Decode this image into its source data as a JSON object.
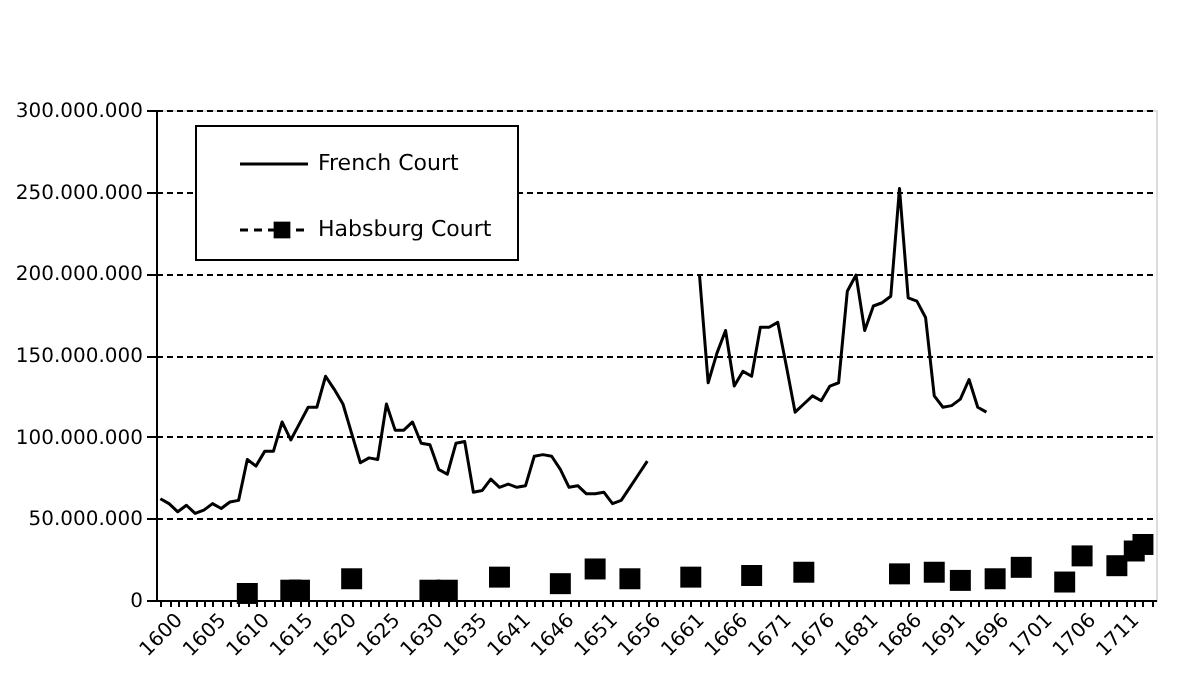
{
  "chart_data": {
    "type": "line",
    "categories": [
      "1600",
      null,
      null,
      null,
      null,
      "1605",
      null,
      null,
      null,
      null,
      "1610",
      null,
      null,
      null,
      null,
      "1615",
      null,
      null,
      null,
      null,
      "1620",
      null,
      null,
      null,
      null,
      "1625",
      null,
      null,
      null,
      null,
      "1630",
      null,
      null,
      null,
      null,
      "1635",
      null,
      null,
      null,
      null,
      "1641",
      null,
      null,
      null,
      null,
      "1646",
      null,
      null,
      null,
      null,
      "1651",
      null,
      null,
      null,
      null,
      "1656",
      null,
      null,
      null,
      null,
      "1661",
      null,
      null,
      null,
      null,
      "1666",
      null,
      null,
      null,
      null,
      "1671",
      null,
      null,
      null,
      null,
      "1676",
      null,
      null,
      null,
      null,
      "1681",
      null,
      null,
      null,
      null,
      "1686",
      null,
      null,
      null,
      null,
      "1691",
      null,
      null,
      null,
      null,
      "1696",
      null,
      null,
      null,
      null,
      "1701",
      null,
      null,
      null,
      null,
      "1706",
      null,
      null,
      null,
      null,
      "1711",
      null,
      null,
      null,
      null
    ],
    "series": [
      {
        "name": "French Court",
        "color": "#000000",
        "line_style": "solid",
        "marker": "none",
        "values": [
          62000000,
          59000000,
          54000000,
          58000000,
          53000000,
          55000000,
          59000000,
          56000000,
          60000000,
          61000000,
          86000000,
          82000000,
          91000000,
          91000000,
          109000000,
          98000000,
          108000000,
          118000000,
          118000000,
          137000000,
          129000000,
          120000000,
          102000000,
          84000000,
          87000000,
          86000000,
          120000000,
          104000000,
          104000000,
          109000000,
          96000000,
          95000000,
          80000000,
          77000000,
          96000000,
          97000000,
          66000000,
          67000000,
          74000000,
          69000000,
          71000000,
          69000000,
          70000000,
          88000000,
          89000000,
          88000000,
          80000000,
          69000000,
          70000000,
          65000000,
          65000000,
          66000000,
          59000000,
          61000000,
          69000000,
          77000000,
          85000000,
          null,
          null,
          null,
          null,
          null,
          199000000,
          133000000,
          151000000,
          165000000,
          131000000,
          140000000,
          137000000,
          167000000,
          167000000,
          170000000,
          143000000,
          115000000,
          120000000,
          125000000,
          122000000,
          131000000,
          133000000,
          189000000,
          199000000,
          165000000,
          180000000,
          182000000,
          186000000,
          252000000,
          185000000,
          183000000,
          173000000,
          125000000,
          118000000,
          119000000,
          123000000,
          135000000,
          118000000,
          115000000,
          null,
          null,
          null,
          null,
          null,
          null,
          null,
          null,
          null,
          null,
          null,
          null,
          null,
          null,
          null,
          null,
          null,
          null,
          null
        ]
      },
      {
        "name": "Habsburg Court",
        "type": "scatter",
        "color": "#000000",
        "line_style": "dashed",
        "marker": "square",
        "values": [
          null,
          null,
          null,
          null,
          null,
          null,
          null,
          null,
          null,
          null,
          4000000,
          null,
          null,
          null,
          null,
          6000000,
          6000000,
          null,
          null,
          null,
          null,
          null,
          13000000,
          null,
          null,
          null,
          null,
          null,
          null,
          null,
          null,
          6000000,
          null,
          6000000,
          null,
          null,
          null,
          null,
          null,
          14000000,
          null,
          null,
          null,
          null,
          null,
          null,
          10000000,
          null,
          null,
          null,
          19000000,
          null,
          null,
          null,
          13000000,
          null,
          null,
          null,
          null,
          null,
          null,
          14000000,
          null,
          null,
          null,
          null,
          null,
          null,
          15000000,
          null,
          null,
          null,
          null,
          null,
          17000000,
          null,
          null,
          null,
          null,
          null,
          null,
          null,
          null,
          null,
          null,
          16000000,
          null,
          null,
          null,
          17000000,
          null,
          null,
          12000000,
          null,
          null,
          null,
          13000000,
          null,
          null,
          20000000,
          null,
          null,
          null,
          null,
          11000000,
          null,
          27000000,
          null,
          null,
          null,
          21000000,
          null,
          30000000,
          34000000,
          null
        ]
      }
    ],
    "ylim": [
      0,
      300000000
    ],
    "yticks": [
      {
        "value": 0,
        "label": "0"
      },
      {
        "value": 50000000,
        "label": "50.000.000"
      },
      {
        "value": 100000000,
        "label": "100.000.000"
      },
      {
        "value": 150000000,
        "label": "150.000.000"
      },
      {
        "value": 200000000,
        "label": "200.000.000"
      },
      {
        "value": 250000000,
        "label": "250.000.000"
      },
      {
        "value": 300000000,
        "label": "300.000.000"
      }
    ],
    "grid": "y",
    "legend": "top left"
  }
}
